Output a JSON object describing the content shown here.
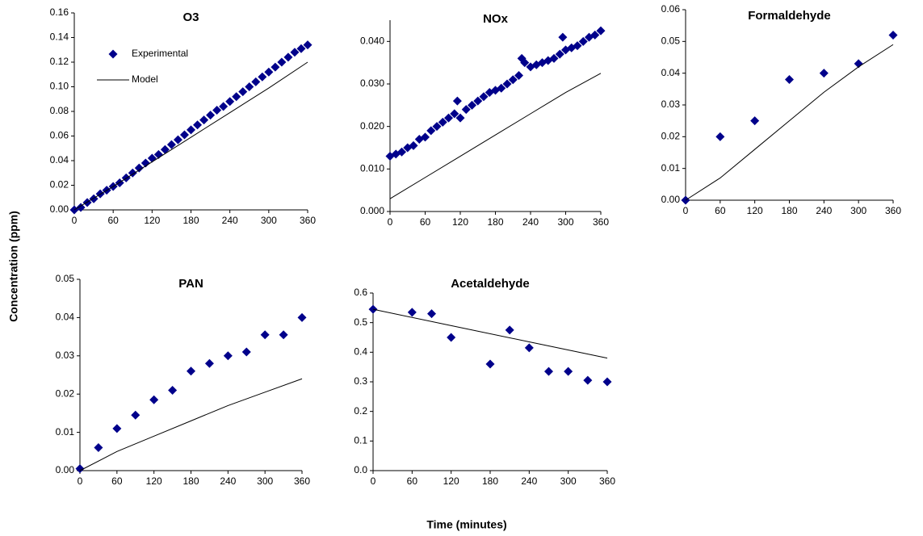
{
  "ylabel": "Concentration (ppm)",
  "xlabel": "Time (minutes)",
  "chart_data": [
    {
      "type": "scatter-line",
      "title": "O3",
      "legend": "upper-left",
      "xlim": [
        0,
        360
      ],
      "xticks": [
        0,
        60,
        120,
        180,
        240,
        300,
        360
      ],
      "ylim": [
        0,
        0.16
      ],
      "yticks": [
        {
          "value": 0,
          "label": "0.00"
        },
        0.02,
        0.04,
        0.06,
        0.08,
        {
          "value": 0.1,
          "label": "0.10"
        },
        0.12,
        0.14,
        0.16
      ],
      "series": [
        {
          "name": "Experimental",
          "style": "marker",
          "color": "#00008b",
          "x": [
            0,
            10,
            20,
            30,
            40,
            50,
            60,
            70,
            80,
            90,
            100,
            110,
            120,
            130,
            140,
            150,
            160,
            170,
            180,
            190,
            200,
            210,
            220,
            230,
            240,
            250,
            260,
            270,
            280,
            290,
            300,
            310,
            320,
            330,
            340,
            350,
            360
          ],
          "values": [
            0,
            0.002,
            0.006,
            0.009,
            0.013,
            0.016,
            0.019,
            0.022,
            0.026,
            0.03,
            0.034,
            0.038,
            0.042,
            0.045,
            0.049,
            0.053,
            0.057,
            0.061,
            0.065,
            0.069,
            0.073,
            0.077,
            0.081,
            0.084,
            0.088,
            0.092,
            0.096,
            0.1,
            0.104,
            0.108,
            0.112,
            0.116,
            0.12,
            0.124,
            0.128,
            0.131,
            0.134
          ]
        },
        {
          "name": "Model",
          "style": "line",
          "color": "#000000",
          "x": [
            0,
            60,
            120,
            180,
            240,
            300,
            360
          ],
          "values": [
            0,
            0.019,
            0.039,
            0.059,
            0.079,
            0.099,
            0.12
          ]
        }
      ]
    },
    {
      "type": "scatter-line",
      "title": "NOx",
      "xlim": [
        0,
        360
      ],
      "xticks": [
        0,
        60,
        120,
        180,
        240,
        300,
        360
      ],
      "ylim": [
        0,
        0.045
      ],
      "yticks": [
        {
          "value": 0,
          "label": "0.000"
        },
        {
          "value": 0.01,
          "label": "0.010"
        },
        {
          "value": 0.02,
          "label": "0.020"
        },
        {
          "value": 0.03,
          "label": "0.030"
        },
        {
          "value": 0.04,
          "label": "0.040"
        }
      ],
      "series": [
        {
          "style": "marker",
          "color": "#00008b",
          "x": [
            0,
            10,
            20,
            30,
            40,
            50,
            60,
            70,
            80,
            90,
            100,
            110,
            115,
            120,
            130,
            140,
            150,
            160,
            170,
            180,
            190,
            200,
            210,
            220,
            225,
            230,
            240,
            250,
            260,
            270,
            280,
            290,
            295,
            300,
            310,
            320,
            330,
            340,
            350,
            360
          ],
          "values": [
            0.013,
            0.0135,
            0.014,
            0.015,
            0.0155,
            0.017,
            0.0175,
            0.019,
            0.02,
            0.021,
            0.022,
            0.023,
            0.026,
            0.022,
            0.024,
            0.025,
            0.026,
            0.027,
            0.028,
            0.0285,
            0.029,
            0.03,
            0.031,
            0.032,
            0.036,
            0.035,
            0.034,
            0.0345,
            0.035,
            0.0355,
            0.036,
            0.037,
            0.041,
            0.038,
            0.0385,
            0.039,
            0.04,
            0.041,
            0.0415,
            0.0425
          ]
        },
        {
          "style": "line",
          "color": "#000000",
          "x": [
            0,
            60,
            120,
            180,
            240,
            300,
            360
          ],
          "values": [
            0.003,
            0.008,
            0.013,
            0.018,
            0.023,
            0.028,
            0.0325
          ]
        }
      ]
    },
    {
      "type": "scatter-line",
      "title": "Formaldehyde",
      "xlim": [
        0,
        360
      ],
      "xticks": [
        0,
        60,
        120,
        180,
        240,
        300,
        360
      ],
      "ylim": [
        0,
        0.06
      ],
      "yticks": [
        {
          "value": 0,
          "label": "0.00"
        },
        0.01,
        0.02,
        0.03,
        0.04,
        0.05,
        0.06
      ],
      "series": [
        {
          "style": "marker",
          "color": "#00008b",
          "x": [
            0,
            60,
            120,
            180,
            240,
            300,
            360
          ],
          "values": [
            0,
            0.02,
            0.025,
            0.038,
            0.04,
            0.043,
            0.052
          ]
        },
        {
          "style": "line",
          "color": "#000000",
          "x": [
            0,
            60,
            120,
            180,
            240,
            300,
            360
          ],
          "values": [
            0,
            0.007,
            0.016,
            0.025,
            0.034,
            0.042,
            0.049
          ]
        }
      ]
    },
    {
      "type": "scatter-line",
      "title": "PAN",
      "xlim": [
        0,
        360
      ],
      "xticks": [
        0,
        60,
        120,
        180,
        240,
        300,
        360
      ],
      "ylim": [
        0,
        0.05
      ],
      "yticks": [
        {
          "value": 0,
          "label": "0.00"
        },
        0.01,
        0.02,
        0.03,
        0.04,
        0.05
      ],
      "series": [
        {
          "style": "marker",
          "color": "#00008b",
          "x": [
            0,
            30,
            60,
            90,
            120,
            150,
            180,
            210,
            240,
            270,
            300,
            330,
            360
          ],
          "values": [
            0.0005,
            0.006,
            0.011,
            0.0145,
            0.0185,
            0.021,
            0.026,
            0.028,
            0.03,
            0.031,
            0.0355,
            0.0355,
            0.04
          ]
        },
        {
          "style": "line",
          "color": "#000000",
          "x": [
            0,
            60,
            120,
            180,
            240,
            300,
            360
          ],
          "values": [
            0,
            0.005,
            0.009,
            0.013,
            0.017,
            0.0205,
            0.024
          ]
        }
      ]
    },
    {
      "type": "scatter-line",
      "title": "Acetaldehyde",
      "xlim": [
        0,
        360
      ],
      "xticks": [
        0,
        60,
        120,
        180,
        240,
        300,
        360
      ],
      "ylim": [
        0,
        0.6
      ],
      "yticks": [
        {
          "value": 0,
          "label": "0.0"
        },
        0.1,
        0.2,
        0.3,
        0.4,
        0.5,
        0.6
      ],
      "series": [
        {
          "style": "marker",
          "color": "#00008b",
          "x": [
            0,
            60,
            90,
            120,
            180,
            210,
            240,
            270,
            300,
            330,
            360
          ],
          "values": [
            0.545,
            0.535,
            0.53,
            0.45,
            0.36,
            0.475,
            0.415,
            0.335,
            0.335,
            0.305,
            0.3
          ]
        },
        {
          "style": "line",
          "color": "#000000",
          "x": [
            0,
            120,
            240,
            360
          ],
          "values": [
            0.545,
            0.49,
            0.435,
            0.38
          ]
        }
      ]
    }
  ]
}
